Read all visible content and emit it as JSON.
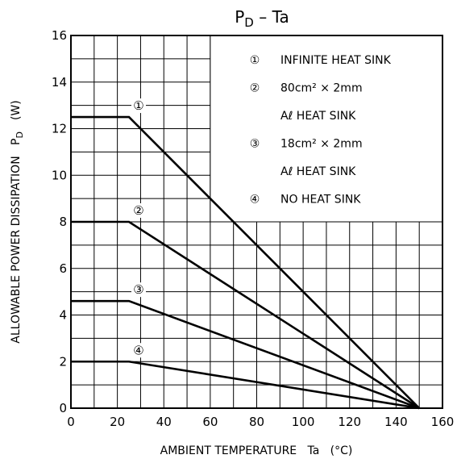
{
  "chart_data": {
    "type": "line",
    "title_main": "P",
    "title_sub": "D",
    "title_rest": "  –  Ta",
    "xlabel": "AMBIENT TEMPERATURE   Ta   (°C)",
    "ylabel_main": "ALLOWABLE POWER DISSIPATION   P",
    "ylabel_sub": "D",
    "ylabel_unit": "(W)",
    "xlim": [
      0,
      160
    ],
    "ylim": [
      0,
      16
    ],
    "xticks": [
      "0",
      "20",
      "40",
      "60",
      "80",
      "100",
      "120",
      "140",
      "160"
    ],
    "yticks": [
      "0",
      "2",
      "4",
      "6",
      "8",
      "10",
      "12",
      "14",
      "16"
    ],
    "grid": true,
    "series": [
      {
        "name": "①",
        "x": [
          0,
          25,
          150
        ],
        "y": [
          12.5,
          12.5,
          0
        ]
      },
      {
        "name": "②",
        "x": [
          0,
          25,
          150
        ],
        "y": [
          8,
          8,
          0
        ]
      },
      {
        "name": "③",
        "x": [
          0,
          25,
          150
        ],
        "y": [
          4.6,
          4.6,
          0
        ]
      },
      {
        "name": "④",
        "x": [
          0,
          25,
          150
        ],
        "y": [
          2,
          2,
          0
        ]
      }
    ],
    "legend": {
      "placement": "top-right",
      "entries": [
        {
          "marker": "①",
          "line1": "INFINITE HEAT SINK",
          "line2": ""
        },
        {
          "marker": "②",
          "line1": "80cm² × 2mm",
          "line2": "Aℓ HEAT SINK"
        },
        {
          "marker": "③",
          "line1": "18cm² × 2mm",
          "line2": "Aℓ HEAT SINK"
        },
        {
          "marker": "④",
          "line1": "NO HEAT SINK",
          "line2": ""
        }
      ]
    }
  }
}
